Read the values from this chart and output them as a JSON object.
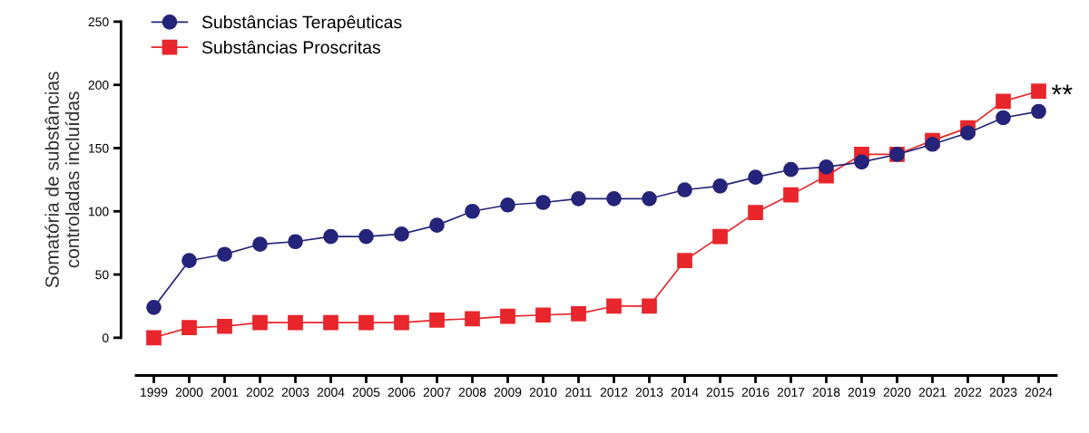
{
  "chart_data": {
    "type": "line",
    "ylabel": "Somatória de substâncias\ncontroladas incluídas",
    "categories": [
      "1999",
      "2000",
      "2001",
      "2002",
      "2003",
      "2004",
      "2005",
      "2006",
      "2007",
      "2008",
      "2009",
      "2010",
      "2011",
      "2012",
      "2013",
      "2014",
      "2015",
      "2016",
      "2017",
      "2018",
      "2019",
      "2020",
      "2021",
      "2022",
      "2023",
      "2024"
    ],
    "series": [
      {
        "name": "Substâncias Terapêuticas",
        "color": "#24247a",
        "marker": "circle",
        "values": [
          24,
          61,
          66,
          74,
          76,
          80,
          80,
          82,
          89,
          100,
          105,
          107,
          110,
          110,
          110,
          117,
          120,
          127,
          133,
          135,
          139,
          145,
          153,
          162,
          174,
          179
        ]
      },
      {
        "name": "Substâncias Proscritas",
        "color": "#e8262b",
        "marker": "square",
        "values": [
          0,
          8,
          9,
          12,
          12,
          12,
          12,
          12,
          14,
          15,
          17,
          18,
          19,
          25,
          25,
          61,
          80,
          99,
          113,
          128,
          145,
          145,
          156,
          166,
          187,
          195
        ]
      }
    ],
    "ylim": [
      0,
      250
    ],
    "yticks": [
      0,
      50,
      100,
      150,
      200,
      250
    ],
    "annotations": [
      {
        "text": "**",
        "x": "2024",
        "y": 195
      }
    ],
    "legend": "top left",
    "grid": false
  }
}
